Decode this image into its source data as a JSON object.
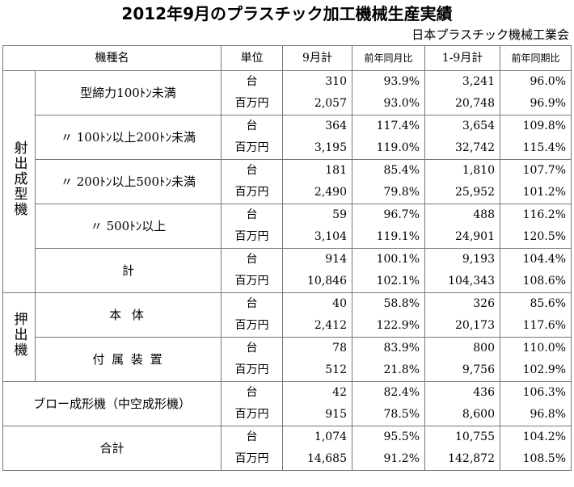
{
  "title": "2012年9月のプラスチック加工機械生産実績",
  "organization": "日本プラスチック機械工業会",
  "headers": {
    "item": "機種名",
    "unit": "単位",
    "month": "9月計",
    "month_yoy": "前年同月比",
    "cumulative": "1-9月計",
    "cumulative_yoy": "前年同期比"
  },
  "groups": {
    "injection": "射出成型機",
    "extrusion": "押出機"
  },
  "rows": [
    {
      "item": "型締力100ﾄﾝ未満",
      "units": {
        "rows": [
          {
            "unit": "台",
            "month": "310",
            "month_yoy": "93.9%",
            "cumulative": "3,241",
            "cumulative_yoy": "96.0%"
          },
          {
            "unit": "百万円",
            "month": "2,057",
            "month_yoy": "93.0%",
            "cumulative": "20,748",
            "cumulative_yoy": "96.9%"
          }
        ]
      }
    },
    {
      "item": "〃 100ﾄﾝ以上200ﾄﾝ未満",
      "units": {
        "rows": [
          {
            "unit": "台",
            "month": "364",
            "month_yoy": "117.4%",
            "cumulative": "3,654",
            "cumulative_yoy": "109.8%"
          },
          {
            "unit": "百万円",
            "month": "3,195",
            "month_yoy": "119.0%",
            "cumulative": "32,742",
            "cumulative_yoy": "115.4%"
          }
        ]
      }
    },
    {
      "item": "〃 200ﾄﾝ以上500ﾄﾝ未満",
      "units": {
        "rows": [
          {
            "unit": "台",
            "month": "181",
            "month_yoy": "85.4%",
            "cumulative": "1,810",
            "cumulative_yoy": "107.7%"
          },
          {
            "unit": "百万円",
            "month": "2,490",
            "month_yoy": "79.8%",
            "cumulative": "25,952",
            "cumulative_yoy": "101.2%"
          }
        ]
      }
    },
    {
      "item": "〃 500ﾄﾝ以上",
      "units": {
        "rows": [
          {
            "unit": "台",
            "month": "59",
            "month_yoy": "96.7%",
            "cumulative": "488",
            "cumulative_yoy": "116.2%"
          },
          {
            "unit": "百万円",
            "month": "3,104",
            "month_yoy": "119.1%",
            "cumulative": "24,901",
            "cumulative_yoy": "120.5%"
          }
        ]
      }
    },
    {
      "item": "計",
      "units": {
        "rows": [
          {
            "unit": "台",
            "month": "914",
            "month_yoy": "100.1%",
            "cumulative": "9,193",
            "cumulative_yoy": "104.4%"
          },
          {
            "unit": "百万円",
            "month": "10,846",
            "month_yoy": "102.1%",
            "cumulative": "104,343",
            "cumulative_yoy": "108.6%"
          }
        ]
      }
    },
    {
      "item": "本 体",
      "units": {
        "rows": [
          {
            "unit": "台",
            "month": "40",
            "month_yoy": "58.8%",
            "cumulative": "326",
            "cumulative_yoy": "85.6%"
          },
          {
            "unit": "百万円",
            "month": "2,412",
            "month_yoy": "122.9%",
            "cumulative": "20,173",
            "cumulative_yoy": "117.6%"
          }
        ]
      }
    },
    {
      "item": "付 属 装 置",
      "units": {
        "rows": [
          {
            "unit": "台",
            "month": "78",
            "month_yoy": "83.9%",
            "cumulative": "800",
            "cumulative_yoy": "110.0%"
          },
          {
            "unit": "百万円",
            "month": "512",
            "month_yoy": "21.8%",
            "cumulative": "9,756",
            "cumulative_yoy": "102.9%"
          }
        ]
      }
    },
    {
      "item": "ブロー成形機（中空成形機）",
      "units": {
        "rows": [
          {
            "unit": "台",
            "month": "42",
            "month_yoy": "82.4%",
            "cumulative": "436",
            "cumulative_yoy": "106.3%"
          },
          {
            "unit": "百万円",
            "month": "915",
            "month_yoy": "78.5%",
            "cumulative": "8,600",
            "cumulative_yoy": "96.8%"
          }
        ]
      }
    },
    {
      "item": "合計",
      "units": {
        "rows": [
          {
            "unit": "台",
            "month": "1,074",
            "month_yoy": "95.5%",
            "cumulative": "10,755",
            "cumulative_yoy": "104.2%"
          },
          {
            "unit": "百万円",
            "month": "14,685",
            "month_yoy": "91.2%",
            "cumulative": "142,872",
            "cumulative_yoy": "108.5%"
          }
        ]
      }
    }
  ]
}
